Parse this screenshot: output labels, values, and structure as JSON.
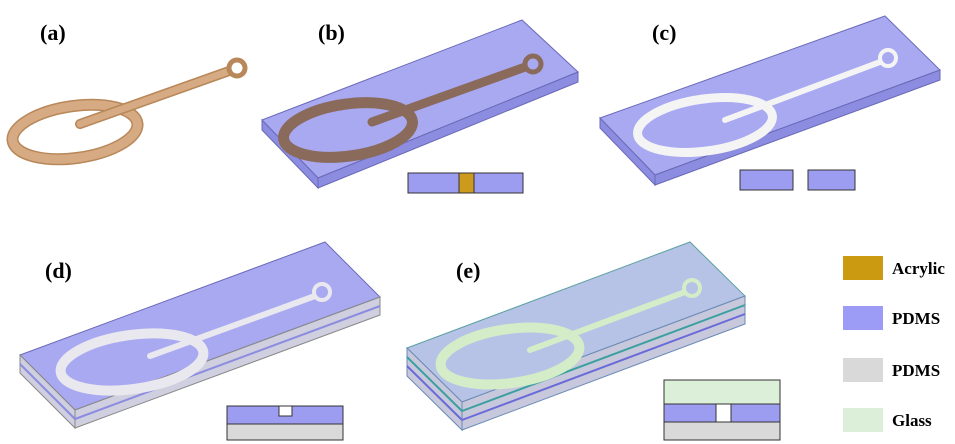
{
  "panels": [
    {
      "label": "(a)"
    },
    {
      "label": "(b)"
    },
    {
      "label": "(c)"
    },
    {
      "label": "(d)"
    },
    {
      "label": "(e)"
    }
  ],
  "legend": [
    {
      "label": "Acrylic"
    },
    {
      "label": "PDMS"
    },
    {
      "label": "PDMS"
    },
    {
      "label": "Glass"
    }
  ]
}
